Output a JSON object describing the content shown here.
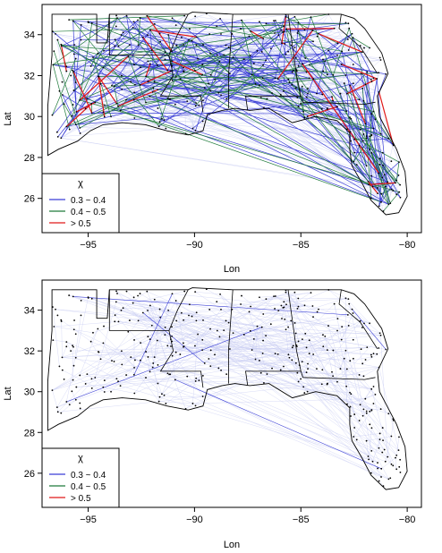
{
  "colors": {
    "weak": "#c8ccf2",
    "blue": "#3b3fd6",
    "green": "#1f7a3a",
    "red": "#e01919",
    "point": "#000000",
    "boundary": "#000000"
  },
  "chart_data": [
    {
      "type": "scatter",
      "xlabel": "Lon",
      "ylabel": "Lat",
      "xlim": [
        -97,
        -79.5
      ],
      "ylim": [
        24.5,
        35.3
      ],
      "xticks": [
        -95,
        -90,
        -85,
        -80
      ],
      "xtick_labels": [
        "−95",
        "−90",
        "−85",
        "−80"
      ],
      "yticks": [
        26,
        28,
        30,
        32,
        34
      ],
      "ytick_labels": [
        "26",
        "28",
        "30",
        "32",
        "34"
      ],
      "legend": {
        "title": "χ",
        "position": "bottom-left",
        "entries": [
          {
            "label": "0.3 ~ 0.4",
            "color_key": "blue"
          },
          {
            "label": "0.4 ~ 0.5",
            "color_key": "green"
          },
          {
            "label": "> 0.5",
            "color_key": "red"
          }
        ]
      },
      "edge_density": "dense"
    },
    {
      "type": "scatter",
      "xlabel": "Lon",
      "ylabel": "Lat",
      "xlim": [
        -97,
        -79.5
      ],
      "ylim": [
        24.5,
        35.3
      ],
      "xticks": [
        -95,
        -90,
        -85,
        -80
      ],
      "xtick_labels": [
        "−95",
        "−90",
        "−85",
        "−80"
      ],
      "yticks": [
        26,
        28,
        30,
        32,
        34
      ],
      "ytick_labels": [
        "26",
        "28",
        "30",
        "32",
        "34"
      ],
      "legend": {
        "title": "χ",
        "position": "bottom-left",
        "entries": [
          {
            "label": "0.3 ~ 0.4",
            "color_key": "blue"
          },
          {
            "label": "0.4 ~ 0.5",
            "color_key": "green"
          },
          {
            "label": "> 0.5",
            "color_key": "red"
          }
        ]
      },
      "edge_density": "sparse"
    }
  ]
}
